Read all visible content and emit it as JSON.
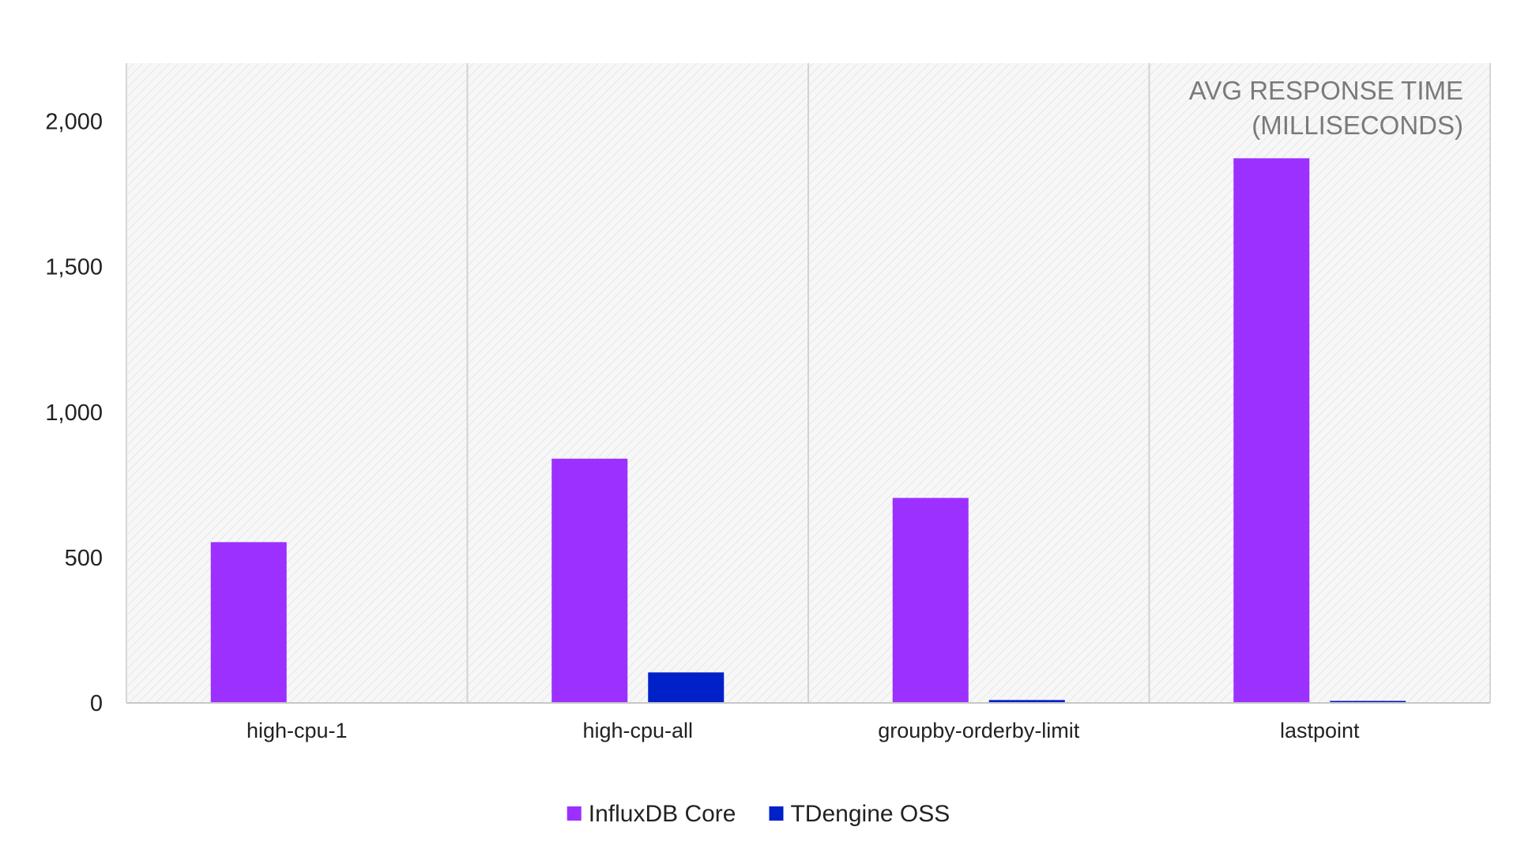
{
  "chart_data": {
    "type": "bar",
    "title_lines": [
      "AVG RESPONSE TIME",
      "(MILLISECONDS)"
    ],
    "categories": [
      "high-cpu-1",
      "high-cpu-all",
      "groupby-orderby-limit",
      "lastpoint"
    ],
    "series": [
      {
        "name": "InfluxDB Core",
        "color": "#9b30ff",
        "values": [
          553,
          840,
          705,
          1873
        ]
      },
      {
        "name": "TDengine OSS",
        "color": "#0020c8",
        "values": [
          0,
          105,
          10,
          7
        ]
      }
    ],
    "ylim": [
      0,
      2200
    ],
    "yticks": [
      0,
      500,
      1000,
      1500,
      2000
    ],
    "ytick_labels": [
      "0",
      "500",
      "1,000",
      "1,500",
      "2,000"
    ],
    "xlabel": "",
    "ylabel": "",
    "grid": false,
    "category_separators": true,
    "legend_position": "bottom-center",
    "plot_background": "hatched-light-gray"
  }
}
